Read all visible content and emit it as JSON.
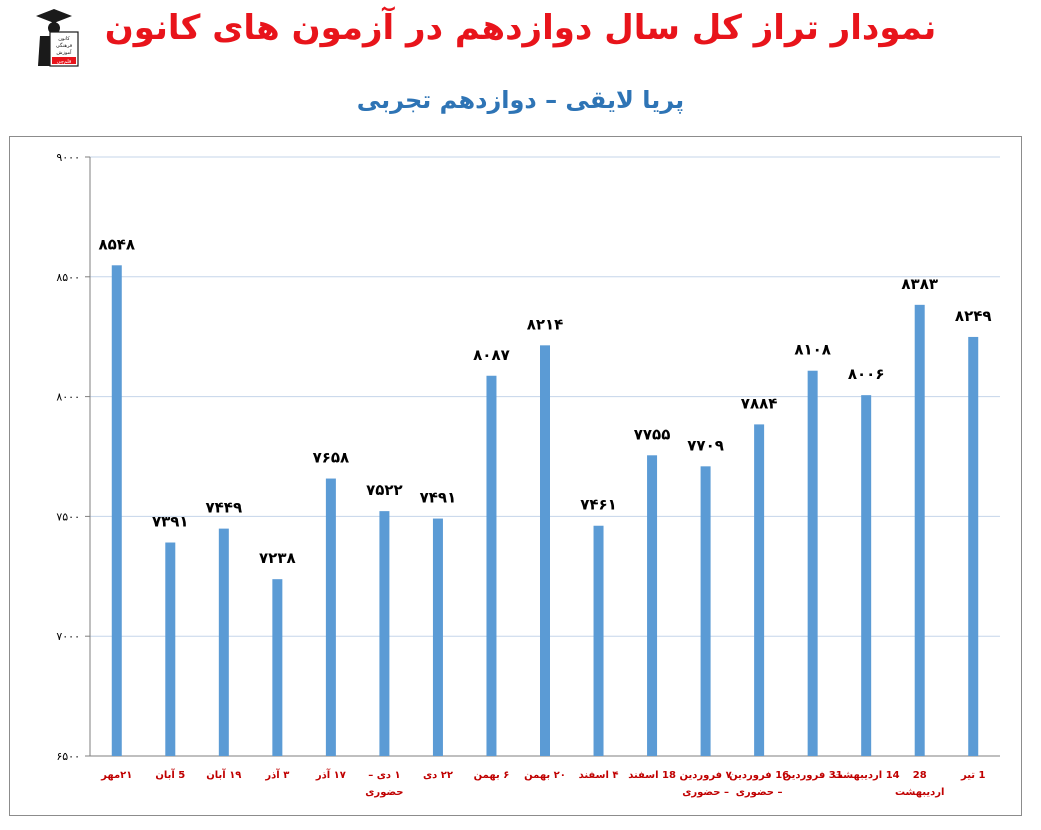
{
  "header": {
    "title": "نمودار تراز کل سال دوازدهم در آزمون های کانون",
    "subtitle": "پریا لایقی – دوازدهم تجربی"
  },
  "logo": {
    "icon": "graduate-logo-icon",
    "lines": [
      "کانون",
      "فرهنگی",
      "آموزش",
      "قلم‌چی"
    ]
  },
  "chart_data": {
    "type": "bar",
    "title": "نمودار تراز کل سال دوازدهم در آزمون های کانون",
    "subtitle": "پریا لایقی – دوازدهم تجربی",
    "ylim": [
      6500,
      9000
    ],
    "yticks": [
      6500,
      7000,
      7500,
      8000,
      8500,
      9000
    ],
    "ytick_labels": [
      "۶۵۰۰",
      "۷۰۰۰",
      "۷۵۰۰",
      "۸۰۰۰",
      "۸۵۰۰",
      "۹۰۰۰"
    ],
    "grid": true,
    "bar_color": "#5b9bd5",
    "categories": [
      [
        "۲۱مهر"
      ],
      [
        "5 آبان"
      ],
      [
        "۱۹ آبان"
      ],
      [
        "۳ آذر"
      ],
      [
        "۱۷ آذر"
      ],
      [
        "۱ دی –",
        "حضوری"
      ],
      [
        "۲۲ دی"
      ],
      [
        "۶ بهمن"
      ],
      [
        "۲۰ بهمن"
      ],
      [
        "۴ اسفند"
      ],
      [
        "18 اسفند"
      ],
      [
        "۷ فروردین",
        "– حضوری"
      ],
      [
        "16 فروردین",
        "– حضوری"
      ],
      [
        "31 فروردین"
      ],
      [
        "14 اردیبهشت"
      ],
      [
        "28",
        "اردیبهشت"
      ],
      [
        "1 تیر"
      ]
    ],
    "values": [
      8548,
      7391,
      7449,
      7238,
      7658,
      7522,
      7491,
      8087,
      8214,
      7461,
      7755,
      7709,
      7884,
      8108,
      8006,
      8383,
      8249
    ],
    "value_labels": [
      "۸۵۴۸",
      "۷۳۹۱",
      "۷۴۴۹",
      "۷۲۳۸",
      "۷۶۵۸",
      "۷۵۲۲",
      "۷۴۹۱",
      "۸۰۸۷",
      "۸۲۱۴",
      "۷۴۶۱",
      "۷۷۵۵",
      "۷۷۰۹",
      "۷۸۸۴",
      "۸۱۰۸",
      "۸۰۰۶",
      "۸۳۸۳",
      "۸۲۴۹"
    ]
  }
}
